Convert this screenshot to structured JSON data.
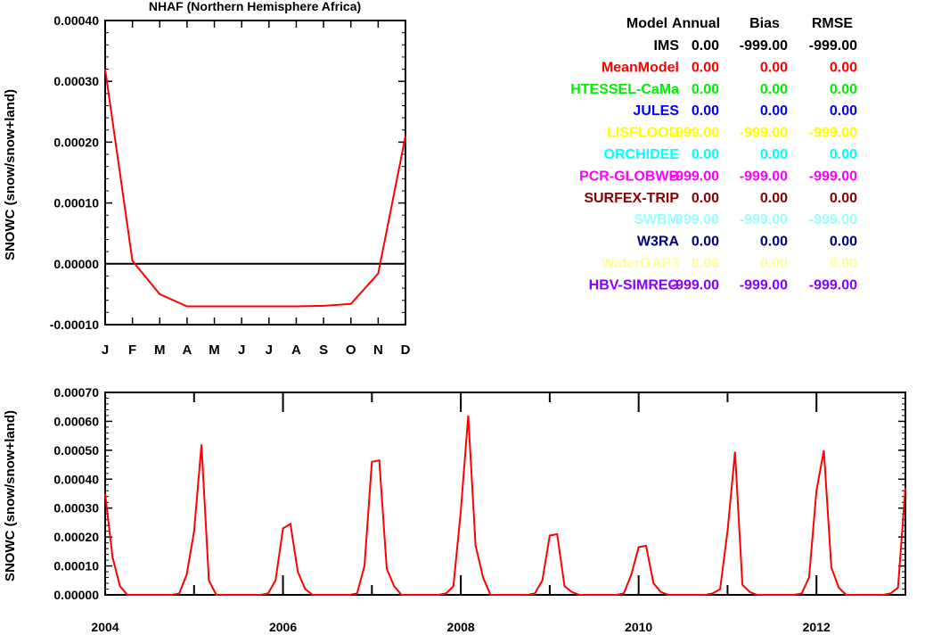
{
  "chart_data": [
    {
      "type": "line",
      "title": "NHAF (Northern Hemisphere Africa)",
      "ylabel": "SNOWC (snow/snow+land)",
      "xlabel": "",
      "categories": [
        "J",
        "F",
        "M",
        "A",
        "M",
        "J",
        "J",
        "A",
        "S",
        "O",
        "N",
        "D"
      ],
      "ylim": [
        -0.0001,
        0.0004
      ],
      "yticks": [
        "-0.00010",
        "0.00000",
        "0.00010",
        "0.00020",
        "0.00030",
        "0.00040"
      ],
      "zero_line": true,
      "grid": false,
      "series": [
        {
          "color": "#ff0000",
          "values": [
            0.00032,
            5e-06,
            -5e-05,
            -7e-05,
            -7e-05,
            -7e-05,
            -7e-05,
            -7e-05,
            -6.9e-05,
            -6.6e-05,
            -1.6e-05,
            0.00021
          ]
        }
      ]
    },
    {
      "type": "line",
      "title": "",
      "ylabel": "SNOWC (snow/snow+land)",
      "xlabel": "",
      "xlim": [
        2004,
        2013
      ],
      "xticks": [
        "2004",
        "2006",
        "2008",
        "2010",
        "2012"
      ],
      "ylim": [
        0,
        0.0007
      ],
      "yticks": [
        "0.00000",
        "0.00010",
        "0.00020",
        "0.00030",
        "0.00040",
        "0.00050",
        "0.00060",
        "0.00070"
      ],
      "grid": false,
      "series": [
        {
          "color": "#ff0000",
          "start": [
            2004,
            1
          ],
          "values": [
            0.00035,
            0.00013,
            3e-05,
            0,
            0,
            0,
            0,
            0,
            0,
            0,
            5e-06,
            7e-05,
            0.00022,
            0.00052,
            5e-05,
            0,
            0,
            0,
            0,
            0,
            0,
            0,
            5e-06,
            5e-05,
            0.00023,
            0.000245,
            8e-05,
            2e-05,
            0,
            0,
            0,
            0,
            0,
            0,
            5e-06,
            0.0001,
            0.00046,
            0.000465,
            9e-05,
            3e-05,
            0,
            0,
            0,
            0,
            0,
            0,
            5e-06,
            3e-05,
            0.00029,
            0.00062,
            0.00017,
            6e-05,
            0,
            0,
            0,
            0,
            0,
            0,
            5e-06,
            5e-05,
            0.000205,
            0.00021,
            3e-05,
            1e-05,
            0,
            0,
            0,
            0,
            0,
            0,
            5e-06,
            7e-05,
            0.000165,
            0.00017,
            4e-05,
            1e-05,
            0,
            0,
            0,
            0,
            0,
            0,
            5e-06,
            2e-05,
            0.00022,
            0.000495,
            3.5e-05,
            1e-05,
            0,
            0,
            0,
            0,
            0,
            0,
            5e-06,
            6e-05,
            0.00036,
            0.0005,
            9.5e-05,
            2.5e-05,
            0,
            0,
            0,
            0,
            0,
            0,
            5e-06,
            2.5e-05,
            0.00037
          ]
        }
      ]
    }
  ],
  "stats_table": {
    "headers": [
      "Model",
      "Annual",
      "Bias",
      "RMSE"
    ],
    "rows": [
      {
        "model": "IMS",
        "annual": "0.00",
        "bias": "-999.00",
        "rmse": "-999.00",
        "color": "#000000"
      },
      {
        "model": "MeanModel",
        "annual": "0.00",
        "bias": "0.00",
        "rmse": "0.00",
        "color": "#ff0000"
      },
      {
        "model": "HTESSEL-CaMa",
        "annual": "0.00",
        "bias": "0.00",
        "rmse": "0.00",
        "color": "#00ee00"
      },
      {
        "model": "JULES",
        "annual": "0.00",
        "bias": "0.00",
        "rmse": "0.00",
        "color": "#0000ff"
      },
      {
        "model": "LISFLOOD",
        "annual": "-999.00",
        "bias": "-999.00",
        "rmse": "-999.00",
        "color": "#ffff00"
      },
      {
        "model": "ORCHIDEE",
        "annual": "0.00",
        "bias": "0.00",
        "rmse": "0.00",
        "color": "#00ffff"
      },
      {
        "model": "PCR-GLOBWB",
        "annual": "-999.00",
        "bias": "-999.00",
        "rmse": "-999.00",
        "color": "#ff00ff"
      },
      {
        "model": "SURFEX-TRIP",
        "annual": "0.00",
        "bias": "0.00",
        "rmse": "0.00",
        "color": "#8b0000"
      },
      {
        "model": "SWBM",
        "annual": "-999.00",
        "bias": "-999.00",
        "rmse": "-999.00",
        "color": "#99ffff"
      },
      {
        "model": "W3RA",
        "annual": "0.00",
        "bias": "0.00",
        "rmse": "0.00",
        "color": "#000080"
      },
      {
        "model": "WaterGAP3",
        "annual": "0.00",
        "bias": "0.00",
        "rmse": "0.00",
        "color": "#ffff99"
      },
      {
        "model": "HBV-SIMREG",
        "annual": "-999.00",
        "bias": "-999.00",
        "rmse": "-999.00",
        "color": "#8800ff"
      }
    ]
  }
}
